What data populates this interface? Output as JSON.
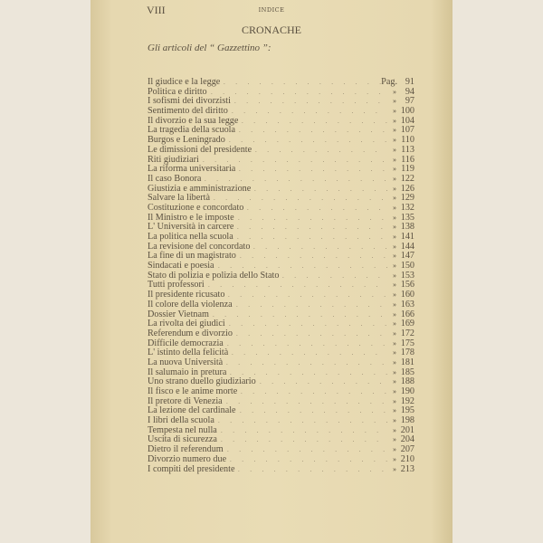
{
  "header": {
    "folio": "VIII",
    "running_title": "INDICE"
  },
  "section_title": "CRONACHE",
  "subtitle": "Gli articoli del “ Gazzettino ”:",
  "first_page_prefix": "Pag.",
  "ditto_mark": "»",
  "entries": [
    {
      "title": "Il giudice e la legge",
      "page": "91"
    },
    {
      "title": "Politica e diritto",
      "page": "94"
    },
    {
      "title": "I sofismi dei divorzisti",
      "page": "97"
    },
    {
      "title": "Sentimento del diritto",
      "page": "100"
    },
    {
      "title": "Il divorzio e la sua legge",
      "page": "104"
    },
    {
      "title": "La tragedia della scuola",
      "page": "107"
    },
    {
      "title": "Burgos e Leningrado",
      "page": "110"
    },
    {
      "title": "Le dimissioni del presidente",
      "page": "113"
    },
    {
      "title": "Riti giudiziari",
      "page": "116"
    },
    {
      "title": "La riforma universitaria",
      "page": "119"
    },
    {
      "title": "Il caso Bonora",
      "page": "122"
    },
    {
      "title": "Giustizia e amministrazione",
      "page": "126"
    },
    {
      "title": "Salvare la libertà",
      "page": "129"
    },
    {
      "title": "Costituzione e concordato",
      "page": "132"
    },
    {
      "title": "Il Ministro e le imposte",
      "page": "135"
    },
    {
      "title": "L' Università in carcere",
      "page": "138"
    },
    {
      "title": "La politica nella scuola",
      "page": "141"
    },
    {
      "title": "La revisione del concordato",
      "page": "144"
    },
    {
      "title": "La fine di un magistrato",
      "page": "147"
    },
    {
      "title": "Sindacati e poesia",
      "page": "150"
    },
    {
      "title": "Stato di polizia e polizia dello Stato",
      "page": "153"
    },
    {
      "title": "Tutti professori",
      "page": "156"
    },
    {
      "title": "Il presidente ricusato",
      "page": "160"
    },
    {
      "title": "Il colore della violenza",
      "page": "163"
    },
    {
      "title": "Dossier Vietnam",
      "page": "166"
    },
    {
      "title": "La rivolta dei giudici",
      "page": "169"
    },
    {
      "title": "Referendum e divorzio",
      "page": "172"
    },
    {
      "title": "Difficile democrazia",
      "page": "175"
    },
    {
      "title": "L' istinto della felicità",
      "page": "178"
    },
    {
      "title": "La nuova Università",
      "page": "181"
    },
    {
      "title": "Il salumaio in pretura",
      "page": "185"
    },
    {
      "title": "Uno strano duello giudiziario",
      "page": "188"
    },
    {
      "title": "Il fisco e le anime morte",
      "page": "190"
    },
    {
      "title": "Il pretore di Venezia",
      "page": "192"
    },
    {
      "title": "La lezione del cardinale",
      "page": "195"
    },
    {
      "title": "I libri della scuola",
      "page": "198"
    },
    {
      "title": "Tempesta nel nulla",
      "page": "201"
    },
    {
      "title": "Uscita di sicurezza",
      "page": "204"
    },
    {
      "title": "Dietro il referendum",
      "page": "207"
    },
    {
      "title": "Divorzio numero due",
      "page": "210"
    },
    {
      "title": "I compiti del presidente",
      "page": "213"
    }
  ]
}
